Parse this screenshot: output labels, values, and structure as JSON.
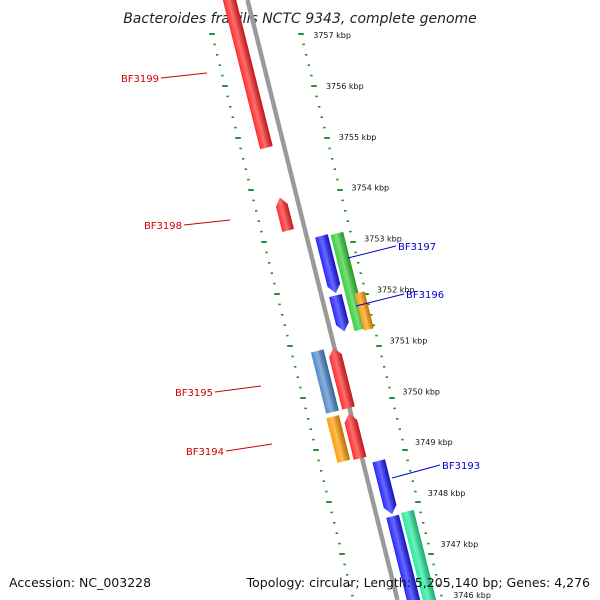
{
  "title": "Bacteroides fragilis NCTC 9343, complete genome",
  "footer": {
    "accession": "Accession: NC_003228",
    "stats": "Topology: circular; Length: 5,205,140 bp; Genes: 4,276"
  },
  "colors": {
    "ruler": "#1f8a2a",
    "backbone": "#9a9a9a",
    "forward_label": "#cc0000",
    "reverse_label": "#0000cc"
  },
  "ticks": [
    "3757 kbp",
    "3756 kbp",
    "3755 kbp",
    "3754 kbp",
    "3753 kbp",
    "3752 kbp",
    "3751 kbp",
    "3750 kbp",
    "3749 kbp",
    "3748 kbp",
    "3747 kbp",
    "3746 kbp"
  ],
  "genes": [
    {
      "id": "BF3199",
      "strand": "forward",
      "color": "#ff2222"
    },
    {
      "id": "BF3198",
      "strand": "forward",
      "color": "#ff2222"
    },
    {
      "id": "BF3197",
      "strand": "reverse",
      "color": "#1a1aff"
    },
    {
      "id": "BF3196",
      "strand": "reverse",
      "color": "#1a1aff"
    },
    {
      "id": "BF3195",
      "strand": "forward",
      "color": "#ff2222"
    },
    {
      "id": "BF3194",
      "strand": "forward",
      "color": "#ff2222"
    },
    {
      "id": "BF3193",
      "strand": "reverse",
      "color": "#1a1aff"
    }
  ],
  "features": [
    {
      "name": "gene-green",
      "color": "#33cc33"
    },
    {
      "name": "gene-orange-a",
      "color": "#ff9900"
    },
    {
      "name": "gene-steelblue",
      "color": "#4a86c8"
    },
    {
      "name": "gene-orange-b",
      "color": "#ff9900"
    },
    {
      "name": "gene-teal",
      "color": "#1ee89a"
    }
  ]
}
